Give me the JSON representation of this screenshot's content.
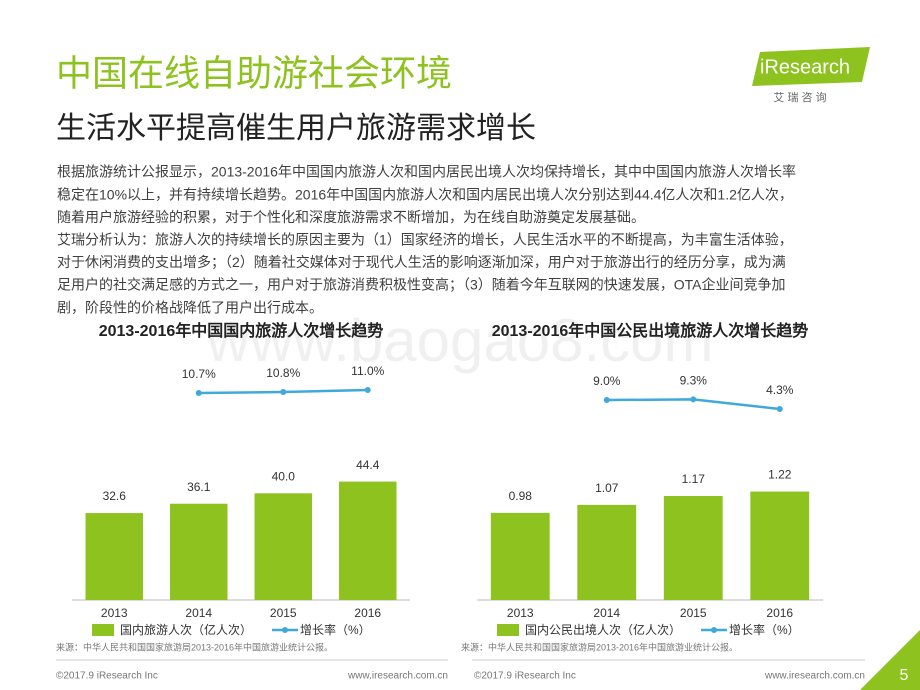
{
  "header": {
    "title": "中国在线自助游社会环境",
    "subtitle": "生活水平提高催生用户旅游需求增长",
    "logo": "iResearch",
    "logo_cn": "艾 瑞 咨 询"
  },
  "body": [
    "根据旅游统计公报显示，2013-2016年中国国内旅游人次和国内居民出境人次均保持增长，其中中国国内旅游人次增长率",
    "稳定在10%以上，并有持续增长趋势。2016年中国国内旅游人次和国内居民出境人次分别达到44.4亿人次和1.2亿人次，",
    "随着用户旅游经验的积累，对于个性化和深度旅游需求不断增加，为在线自助游奠定发展基础。",
    "艾瑞分析认为：旅游人次的持续增长的原因主要为（1）国家经济的增长，人民生活水平的不断提高，为丰富生活体验，",
    "对于休闲消费的支出增多；（2）随着社交媒体对于现代人生活的影响逐渐加深，用户对于旅游出行的经历分享，成为满",
    "足用户的社交满足感的方式之一，用户对于旅游消费积极性变高；（3）随着今年互联网的快速发展，OTA企业间竞争加",
    "剧，阶段性的价格战降低了用户出行成本。"
  ],
  "watermark": "www.baogao8.com",
  "chart_data": [
    {
      "type": "bar_line",
      "title": "2013-2016年中国国内旅游人次增长趋势",
      "categories": [
        "2013",
        "2014",
        "2015",
        "2016"
      ],
      "ylim": [
        0,
        90
      ],
      "y2lim": [
        -10,
        14
      ],
      "series": [
        {
          "name": "国内旅游人次（亿人次）",
          "color": "#8dc21f",
          "values": [
            32.6,
            36.1,
            40.0,
            44.4
          ],
          "value_labels": [
            "32.6",
            "36.1",
            "40.0",
            "44.4"
          ]
        },
        {
          "name": "增长率（%）",
          "color": "#3fa9dc",
          "axis": "y2",
          "values": [
            null,
            10.7,
            10.8,
            11.0
          ],
          "value_labels": [
            null,
            "10.7%",
            "10.8%",
            "11.0%"
          ]
        }
      ],
      "source": "来源：中华人民共和国国家旅游局2013-2016年中国旅游业统计公报。"
    },
    {
      "type": "bar_line",
      "title": "2013-2016年中国公民出境旅游人次增长趋势",
      "categories": [
        "2013",
        "2014",
        "2015",
        "2016"
      ],
      "ylim": [
        0,
        2.7
      ],
      "y2lim": [
        -96,
        30
      ],
      "series": [
        {
          "name": "国内公民出境人次（亿人次）",
          "color": "#8dc21f",
          "values": [
            0.98,
            1.07,
            1.17,
            1.22
          ]
        },
        {
          "name": "增长率（%）",
          "color": "#3fa9dc",
          "axis": "y2",
          "values": [
            null,
            9.0,
            9.3,
            4.3
          ],
          "value_labels": [
            null,
            "9.0%",
            "9.3%",
            "4.3%"
          ]
        }
      ],
      "source": "来源：中华人民共和国国家旅游局2013-2016年中国旅游业统计公报。"
    }
  ],
  "footer": {
    "copyright": [
      "©2017.9 iResearch Inc",
      "©2017.9 iResearch Inc"
    ],
    "website": [
      "www.iresearch.com.cn",
      "www.iresearch.com.cn"
    ],
    "page": "5"
  }
}
